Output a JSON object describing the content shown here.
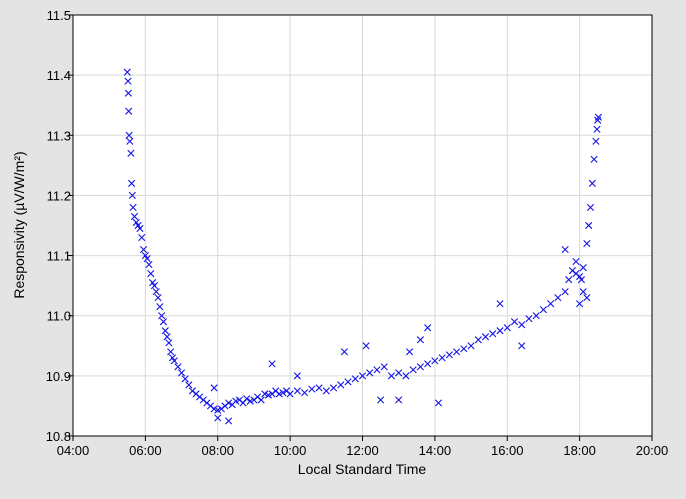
{
  "chart_data": {
    "type": "scatter",
    "title": "",
    "xlabel": "Local Standard Time",
    "ylabel": "Responsivity (µV/W/m²)",
    "x_unit": "hours",
    "xlim": [
      4,
      20
    ],
    "ylim": [
      10.8,
      11.5
    ],
    "xticks": [
      {
        "value": 4,
        "label": "04:00"
      },
      {
        "value": 6,
        "label": "06:00"
      },
      {
        "value": 8,
        "label": "08:00"
      },
      {
        "value": 10,
        "label": "10:00"
      },
      {
        "value": 12,
        "label": "12:00"
      },
      {
        "value": 14,
        "label": "14:00"
      },
      {
        "value": 16,
        "label": "16:00"
      },
      {
        "value": 18,
        "label": "18:00"
      },
      {
        "value": 20,
        "label": "20:00"
      }
    ],
    "yticks": [
      {
        "value": 10.8,
        "label": "10.8"
      },
      {
        "value": 10.9,
        "label": "10.9"
      },
      {
        "value": 11.0,
        "label": "11.0"
      },
      {
        "value": 11.1,
        "label": "11.1"
      },
      {
        "value": 11.2,
        "label": "11.2"
      },
      {
        "value": 11.3,
        "label": "11.3"
      },
      {
        "value": 11.4,
        "label": "11.4"
      },
      {
        "value": 11.5,
        "label": "11.5"
      }
    ],
    "grid": true,
    "marker": "x",
    "marker_color": "#1414e6",
    "series": [
      {
        "points": [
          [
            5.5,
            11.405
          ],
          [
            5.52,
            11.39
          ],
          [
            5.53,
            11.37
          ],
          [
            5.54,
            11.34
          ],
          [
            5.55,
            11.3
          ],
          [
            5.57,
            11.29
          ],
          [
            5.6,
            11.27
          ],
          [
            5.62,
            11.22
          ],
          [
            5.64,
            11.2
          ],
          [
            5.66,
            11.18
          ],
          [
            5.7,
            11.165
          ],
          [
            5.75,
            11.155
          ],
          [
            5.8,
            11.15
          ],
          [
            5.85,
            11.145
          ],
          [
            5.9,
            11.13
          ],
          [
            5.95,
            11.11
          ],
          [
            6.0,
            11.1
          ],
          [
            6.05,
            11.095
          ],
          [
            6.1,
            11.085
          ],
          [
            6.15,
            11.07
          ],
          [
            6.2,
            11.055
          ],
          [
            6.25,
            11.05
          ],
          [
            6.3,
            11.04
          ],
          [
            6.35,
            11.03
          ],
          [
            6.4,
            11.015
          ],
          [
            6.45,
            11.0
          ],
          [
            6.5,
            10.99
          ],
          [
            6.55,
            10.975
          ],
          [
            6.6,
            10.965
          ],
          [
            6.65,
            10.955
          ],
          [
            6.7,
            10.94
          ],
          [
            6.75,
            10.93
          ],
          [
            6.8,
            10.925
          ],
          [
            6.9,
            10.915
          ],
          [
            7.0,
            10.905
          ],
          [
            7.1,
            10.895
          ],
          [
            7.2,
            10.885
          ],
          [
            7.3,
            10.875
          ],
          [
            7.4,
            10.87
          ],
          [
            7.5,
            10.865
          ],
          [
            7.6,
            10.86
          ],
          [
            7.7,
            10.855
          ],
          [
            7.8,
            10.85
          ],
          [
            7.9,
            10.845
          ],
          [
            8.0,
            10.843
          ],
          [
            8.1,
            10.845
          ],
          [
            8.2,
            10.85
          ],
          [
            8.3,
            10.855
          ],
          [
            8.4,
            10.852
          ],
          [
            8.5,
            10.858
          ],
          [
            8.6,
            10.86
          ],
          [
            8.7,
            10.855
          ],
          [
            8.8,
            10.862
          ],
          [
            8.9,
            10.858
          ],
          [
            9.0,
            10.86
          ],
          [
            9.1,
            10.865
          ],
          [
            9.2,
            10.86
          ],
          [
            9.3,
            10.87
          ],
          [
            9.4,
            10.868
          ],
          [
            9.5,
            10.87
          ],
          [
            9.6,
            10.875
          ],
          [
            9.7,
            10.87
          ],
          [
            9.8,
            10.872
          ],
          [
            9.9,
            10.875
          ],
          [
            10.0,
            10.87
          ],
          [
            10.2,
            10.875
          ],
          [
            10.4,
            10.872
          ],
          [
            10.6,
            10.878
          ],
          [
            10.8,
            10.88
          ],
          [
            11.0,
            10.875
          ],
          [
            11.2,
            10.88
          ],
          [
            11.4,
            10.885
          ],
          [
            11.6,
            10.89
          ],
          [
            11.8,
            10.895
          ],
          [
            12.0,
            10.9
          ],
          [
            12.2,
            10.905
          ],
          [
            12.4,
            10.91
          ],
          [
            12.6,
            10.915
          ],
          [
            12.8,
            10.9
          ],
          [
            13.0,
            10.905
          ],
          [
            13.2,
            10.9
          ],
          [
            13.4,
            10.91
          ],
          [
            13.6,
            10.915
          ],
          [
            13.8,
            10.92
          ],
          [
            14.0,
            10.925
          ],
          [
            14.2,
            10.93
          ],
          [
            14.4,
            10.935
          ],
          [
            14.6,
            10.94
          ],
          [
            14.8,
            10.945
          ],
          [
            15.0,
            10.95
          ],
          [
            15.2,
            10.96
          ],
          [
            15.4,
            10.965
          ],
          [
            15.6,
            10.97
          ],
          [
            15.8,
            10.975
          ],
          [
            16.0,
            10.98
          ],
          [
            16.2,
            10.99
          ],
          [
            16.4,
            10.985
          ],
          [
            16.6,
            10.995
          ],
          [
            16.8,
            11.0
          ],
          [
            17.0,
            11.01
          ],
          [
            17.2,
            11.02
          ],
          [
            17.4,
            11.03
          ],
          [
            17.6,
            11.04
          ],
          [
            17.7,
            11.06
          ],
          [
            17.8,
            11.075
          ],
          [
            17.9,
            11.07
          ],
          [
            18.0,
            11.065
          ],
          [
            18.05,
            11.06
          ],
          [
            18.1,
            11.08
          ],
          [
            18.2,
            11.12
          ],
          [
            18.25,
            11.15
          ],
          [
            18.3,
            11.18
          ],
          [
            18.35,
            11.22
          ],
          [
            18.4,
            11.26
          ],
          [
            18.45,
            11.29
          ],
          [
            18.48,
            11.31
          ],
          [
            18.5,
            11.325
          ],
          [
            18.52,
            11.33
          ],
          [
            8.0,
            10.83
          ],
          [
            8.3,
            10.825
          ],
          [
            7.9,
            10.88
          ],
          [
            9.5,
            10.92
          ],
          [
            10.2,
            10.9
          ],
          [
            11.5,
            10.94
          ],
          [
            12.1,
            10.95
          ],
          [
            12.5,
            10.86
          ],
          [
            13.0,
            10.86
          ],
          [
            13.3,
            10.94
          ],
          [
            13.6,
            10.96
          ],
          [
            13.8,
            10.98
          ],
          [
            14.1,
            10.855
          ],
          [
            15.8,
            11.02
          ],
          [
            16.4,
            10.95
          ],
          [
            17.6,
            11.11
          ],
          [
            17.9,
            11.09
          ],
          [
            18.1,
            11.04
          ],
          [
            18.2,
            11.03
          ],
          [
            18.0,
            11.02
          ]
        ]
      }
    ]
  }
}
